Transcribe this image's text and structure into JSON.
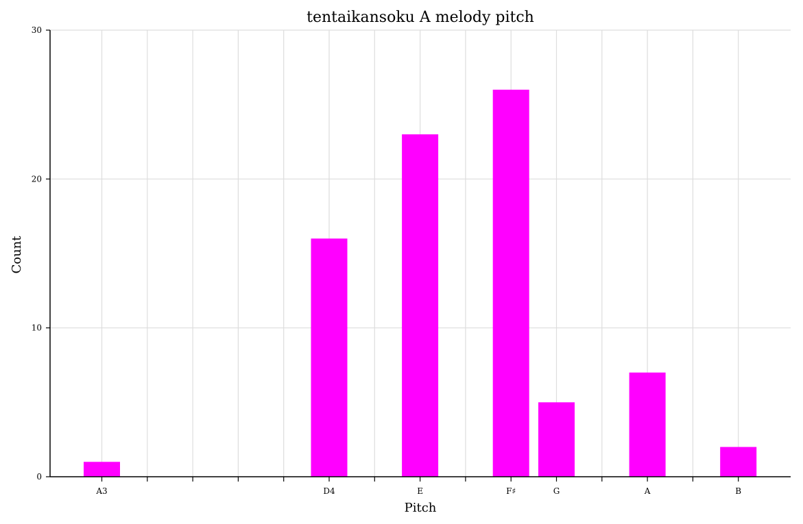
{
  "chart_data": {
    "type": "bar",
    "title": "tentaikansoku A melody pitch",
    "xlabel": "Pitch",
    "ylabel": "Count",
    "slots": [
      "A3",
      "",
      "",
      "",
      "",
      "D4",
      "",
      "E",
      "",
      "F♯",
      "G",
      "",
      "A",
      "",
      "B"
    ],
    "categories": [
      "A3",
      "D4",
      "E",
      "F♯",
      "G",
      "A",
      "B"
    ],
    "values": [
      1,
      16,
      23,
      26,
      5,
      7,
      2
    ],
    "ylim": [
      0,
      30
    ],
    "yticks": [
      0,
      10,
      20,
      30
    ],
    "grid": true,
    "bar_color": "#ff00ff",
    "grid_color": "#dddddd"
  }
}
